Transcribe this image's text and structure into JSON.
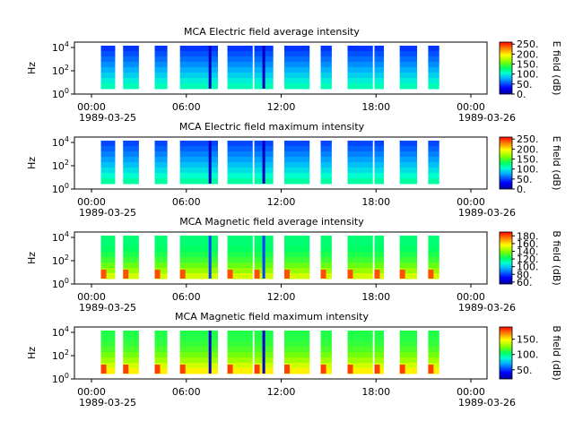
{
  "chart_data": [
    {
      "type": "heatmap",
      "title": "MCA  Electric field average intensity",
      "ylabel": "Hz",
      "y_ticks": [
        "10^4",
        "10^2",
        "10^0"
      ],
      "x_ticks": [
        "00:00",
        "06:00",
        "12:00",
        "18:00",
        "00:00"
      ],
      "x_dates": [
        "1989-03-25",
        "1989-03-26"
      ],
      "colorbar_label": "E field (dB)",
      "colorbar_ticks": [
        "250.",
        "200.",
        "150.",
        "100.",
        "50.",
        "0."
      ],
      "clim": [
        0,
        260
      ],
      "intervals_hours": [
        [
          0.6,
          1.5
        ],
        [
          2.0,
          3.0
        ],
        [
          4.0,
          4.8
        ],
        [
          5.6,
          8.0
        ],
        [
          8.6,
          10.2
        ],
        [
          10.3,
          11.5
        ],
        [
          12.2,
          13.8
        ],
        [
          14.5,
          15.2
        ],
        [
          16.2,
          17.8
        ],
        [
          17.9,
          18.5
        ],
        [
          19.5,
          20.6
        ],
        [
          21.3,
          22.0
        ]
      ],
      "background_db": 95,
      "low_band_db": 110,
      "events": [
        {
          "t": 7.5,
          "db": 10
        },
        {
          "t": 10.9,
          "db": 10
        }
      ]
    },
    {
      "type": "heatmap",
      "title": "MCA  Electric field maximum intensity",
      "ylabel": "Hz",
      "y_ticks": [
        "10^4",
        "10^2",
        "10^0"
      ],
      "x_ticks": [
        "00:00",
        "06:00",
        "12:00",
        "18:00",
        "00:00"
      ],
      "x_dates": [
        "1989-03-25",
        "1989-03-26"
      ],
      "colorbar_label": "E field (dB)",
      "colorbar_ticks": [
        "250.",
        "200.",
        "150.",
        "100.",
        "50.",
        "0."
      ],
      "clim": [
        0,
        260
      ],
      "intervals_hours": [
        [
          0.6,
          1.5
        ],
        [
          2.0,
          3.0
        ],
        [
          4.0,
          4.8
        ],
        [
          5.6,
          8.0
        ],
        [
          8.6,
          10.2
        ],
        [
          10.3,
          11.5
        ],
        [
          12.2,
          13.8
        ],
        [
          14.5,
          15.2
        ],
        [
          16.2,
          17.8
        ],
        [
          17.9,
          18.5
        ],
        [
          19.5,
          20.6
        ],
        [
          21.3,
          22.0
        ]
      ],
      "background_db": 100,
      "low_band_db": 115,
      "events": [
        {
          "t": 7.5,
          "db": 10
        },
        {
          "t": 10.9,
          "db": 10
        }
      ]
    },
    {
      "type": "heatmap",
      "title": "MCA  Magnetic field average intensity",
      "ylabel": "Hz",
      "y_ticks": [
        "10^4",
        "10^2",
        "10^0"
      ],
      "x_ticks": [
        "00:00",
        "06:00",
        "12:00",
        "18:00",
        "00:00"
      ],
      "x_dates": [
        "1989-03-25",
        "1989-03-26"
      ],
      "colorbar_label": "B field (dB)",
      "colorbar_ticks": [
        "180.",
        "160.",
        "140.",
        "120.",
        "100.",
        "80.",
        "60."
      ],
      "clim": [
        55,
        190
      ],
      "intervals_hours": [
        [
          0.6,
          1.5
        ],
        [
          2.0,
          3.0
        ],
        [
          4.0,
          4.8
        ],
        [
          5.6,
          8.0
        ],
        [
          8.6,
          10.2
        ],
        [
          10.3,
          11.5
        ],
        [
          12.2,
          13.8
        ],
        [
          14.5,
          15.2
        ],
        [
          16.2,
          17.8
        ],
        [
          17.9,
          18.5
        ],
        [
          19.5,
          20.6
        ],
        [
          21.3,
          22.0
        ]
      ],
      "background_db": 120,
      "low_band_db": 150,
      "events": [
        {
          "t": 7.5,
          "db": 80
        },
        {
          "t": 10.9,
          "db": 80
        }
      ]
    },
    {
      "type": "heatmap",
      "title": "MCA  Magnetic field maximum intensity",
      "ylabel": "Hz",
      "y_ticks": [
        "10^4",
        "10^2",
        "10^0"
      ],
      "x_ticks": [
        "00:00",
        "06:00",
        "12:00",
        "18:00",
        "00:00"
      ],
      "x_dates": [
        "1989-03-25",
        "1989-03-26"
      ],
      "colorbar_label": "B field (dB)",
      "colorbar_ticks": [
        "150.",
        "100.",
        "50."
      ],
      "clim": [
        20,
        190
      ],
      "intervals_hours": [
        [
          0.6,
          1.5
        ],
        [
          2.0,
          3.0
        ],
        [
          4.0,
          4.8
        ],
        [
          5.6,
          8.0
        ],
        [
          8.6,
          10.2
        ],
        [
          10.3,
          11.5
        ],
        [
          12.2,
          13.8
        ],
        [
          14.5,
          15.2
        ],
        [
          16.2,
          17.8
        ],
        [
          17.9,
          18.5
        ],
        [
          19.5,
          20.6
        ],
        [
          21.3,
          22.0
        ]
      ],
      "background_db": 110,
      "low_band_db": 150,
      "events": [
        {
          "t": 7.5,
          "db": 30
        },
        {
          "t": 10.9,
          "db": 30
        }
      ]
    }
  ]
}
